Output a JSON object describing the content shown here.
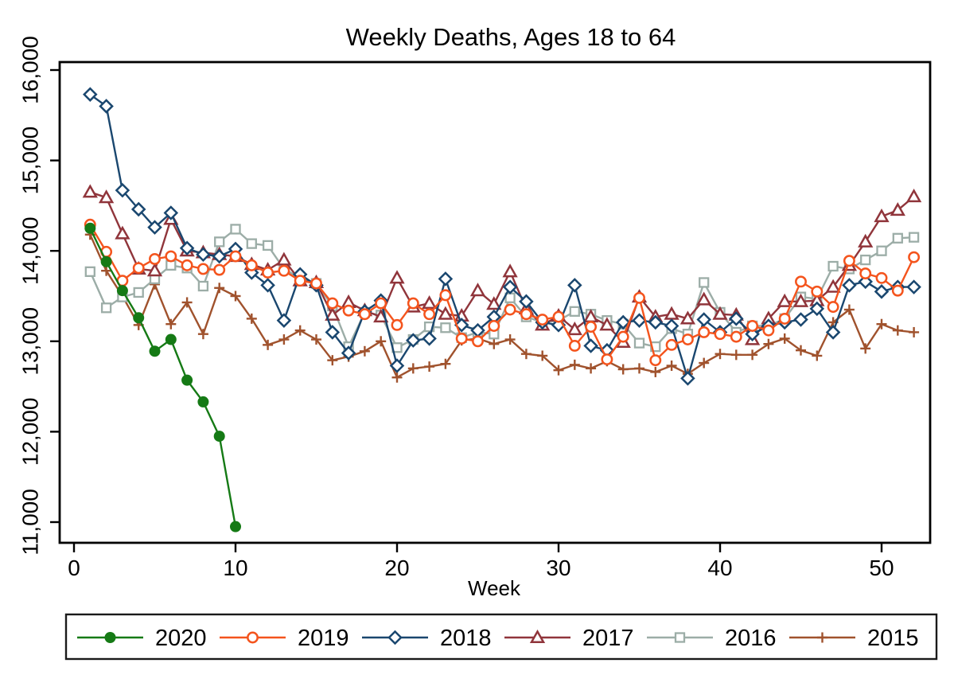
{
  "title": "Weekly Deaths, Ages 18 to 64",
  "chart_data": {
    "type": "line",
    "title": "Weekly Deaths, Ages 18 to 64",
    "xlabel": "Week",
    "ylabel": "",
    "xlim": [
      0,
      53
    ],
    "ylim": [
      10800,
      16100
    ],
    "grid": false,
    "legend_position": "bottom",
    "x_ticks": [
      0,
      10,
      20,
      30,
      40,
      50
    ],
    "y_ticks": {
      "values": [
        11000,
        12000,
        13000,
        14000,
        15000,
        16000
      ],
      "labels": [
        "11,000",
        "12,000",
        "13,000",
        "14,000",
        "15,000",
        "16,000"
      ]
    },
    "frame_color": "#000000",
    "series": [
      {
        "name": "2020",
        "color": "#157a15",
        "marker": "filled-circle",
        "weeks": [
          1,
          2,
          3,
          4,
          5,
          6,
          7,
          8,
          9,
          10
        ],
        "values": [
          14250,
          13880,
          13560,
          13260,
          12890,
          13020,
          12570,
          12330,
          11950,
          10950
        ]
      },
      {
        "name": "2019",
        "color": "#f4541d",
        "marker": "open-circle",
        "weeks": [
          1,
          2,
          3,
          4,
          5,
          6,
          7,
          8,
          9,
          10,
          11,
          12,
          13,
          14,
          15,
          16,
          17,
          18,
          19,
          20,
          21,
          22,
          23,
          24,
          25,
          26,
          27,
          28,
          29,
          30,
          31,
          32,
          33,
          34,
          35,
          36,
          37,
          38,
          39,
          40,
          41,
          42,
          43,
          44,
          45,
          46,
          47,
          48,
          49,
          50,
          51,
          52
        ],
        "values": [
          14290,
          13990,
          13670,
          13810,
          13910,
          13940,
          13840,
          13800,
          13790,
          13940,
          13840,
          13760,
          13780,
          13670,
          13640,
          13420,
          13340,
          13300,
          13420,
          13180,
          13420,
          13300,
          13510,
          13030,
          13000,
          13170,
          13350,
          13300,
          13240,
          13270,
          12950,
          13160,
          12800,
          13050,
          13480,
          12790,
          12960,
          13020,
          13100,
          13080,
          13050,
          13170,
          13120,
          13250,
          13660,
          13550,
          13380,
          13890,
          13750,
          13700,
          13560,
          13930
        ]
      },
      {
        "name": "2018",
        "color": "#1a476f",
        "marker": "open-diamond",
        "weeks": [
          1,
          2,
          3,
          4,
          5,
          6,
          7,
          8,
          9,
          10,
          11,
          12,
          13,
          14,
          15,
          16,
          17,
          18,
          19,
          20,
          21,
          22,
          23,
          24,
          25,
          26,
          27,
          28,
          29,
          30,
          31,
          32,
          33,
          34,
          35,
          36,
          37,
          38,
          39,
          40,
          41,
          42,
          43,
          44,
          45,
          46,
          47,
          48,
          49,
          50,
          51,
          52
        ],
        "values": [
          15730,
          15600,
          14670,
          14460,
          14260,
          14420,
          14030,
          13960,
          13940,
          14020,
          13760,
          13620,
          13230,
          13740,
          13620,
          13100,
          12870,
          13330,
          13450,
          12730,
          13010,
          13030,
          13690,
          13180,
          13120,
          13270,
          13600,
          13440,
          13210,
          13180,
          13620,
          12950,
          12900,
          13210,
          13230,
          13210,
          13170,
          12590,
          13240,
          13100,
          13250,
          13080,
          13170,
          13210,
          13240,
          13360,
          13100,
          13620,
          13660,
          13550,
          13600,
          13600
        ]
      },
      {
        "name": "2017",
        "color": "#90353b",
        "marker": "open-triangle",
        "weeks": [
          1,
          2,
          3,
          4,
          5,
          6,
          7,
          8,
          9,
          10,
          11,
          12,
          13,
          14,
          15,
          16,
          17,
          18,
          19,
          20,
          21,
          22,
          23,
          24,
          25,
          26,
          27,
          28,
          29,
          30,
          31,
          32,
          33,
          34,
          35,
          36,
          37,
          38,
          39,
          40,
          41,
          42,
          43,
          44,
          45,
          46,
          47,
          48,
          49,
          50,
          51,
          52
        ],
        "values": [
          14650,
          14590,
          14190,
          13800,
          13780,
          14350,
          14000,
          13980,
          13960,
          13940,
          13850,
          13790,
          13900,
          13670,
          13650,
          13290,
          13430,
          13340,
          13270,
          13700,
          13380,
          13420,
          13300,
          13280,
          13560,
          13410,
          13770,
          13360,
          13180,
          13280,
          13130,
          13270,
          13180,
          12990,
          13490,
          13270,
          13300,
          13250,
          13460,
          13300,
          13290,
          13020,
          13250,
          13440,
          13440,
          13450,
          13600,
          13840,
          14100,
          14380,
          14450,
          14600
        ]
      },
      {
        "name": "2016",
        "color": "#9cada7",
        "marker": "open-square",
        "weeks": [
          1,
          2,
          3,
          4,
          5,
          6,
          7,
          8,
          9,
          10,
          11,
          12,
          13,
          14,
          15,
          16,
          17,
          18,
          19,
          20,
          21,
          22,
          23,
          24,
          25,
          26,
          27,
          28,
          29,
          30,
          31,
          32,
          33,
          34,
          35,
          36,
          37,
          38,
          39,
          40,
          41,
          42,
          43,
          44,
          45,
          46,
          47,
          48,
          49,
          50,
          51,
          52
        ],
        "values": [
          13770,
          13370,
          13490,
          13540,
          13690,
          13840,
          13810,
          13610,
          14100,
          14240,
          14080,
          14060,
          13800,
          13700,
          13640,
          13390,
          12940,
          13320,
          13290,
          12930,
          13020,
          13160,
          13150,
          13040,
          13100,
          13080,
          13480,
          13270,
          13210,
          13230,
          13330,
          13300,
          13230,
          13190,
          12980,
          12940,
          13140,
          13080,
          13650,
          13320,
          13100,
          13170,
          13170,
          13250,
          13490,
          13470,
          13830,
          13800,
          13900,
          14000,
          14140,
          14150
        ]
      },
      {
        "name": "2015",
        "color": "#a0522d",
        "marker": "plus",
        "weeks": [
          1,
          2,
          3,
          4,
          5,
          6,
          7,
          8,
          9,
          10,
          11,
          12,
          13,
          14,
          15,
          16,
          17,
          18,
          19,
          20,
          21,
          22,
          23,
          24,
          25,
          26,
          27,
          28,
          29,
          30,
          31,
          32,
          33,
          34,
          35,
          36,
          37,
          38,
          39,
          40,
          41,
          42,
          43,
          44,
          45,
          46,
          47,
          48,
          49,
          50,
          51,
          52
        ],
        "values": [
          14180,
          13780,
          13500,
          13180,
          13630,
          13190,
          13430,
          13080,
          13590,
          13500,
          13250,
          12960,
          13020,
          13120,
          13020,
          12790,
          12830,
          12890,
          13000,
          12600,
          12700,
          12720,
          12750,
          13010,
          13030,
          12970,
          13020,
          12860,
          12840,
          12680,
          12740,
          12700,
          12780,
          12690,
          12700,
          12660,
          12730,
          12640,
          12760,
          12860,
          12850,
          12850,
          12970,
          13030,
          12900,
          12840,
          13210,
          13350,
          12920,
          13190,
          13120,
          13100
        ]
      }
    ]
  }
}
